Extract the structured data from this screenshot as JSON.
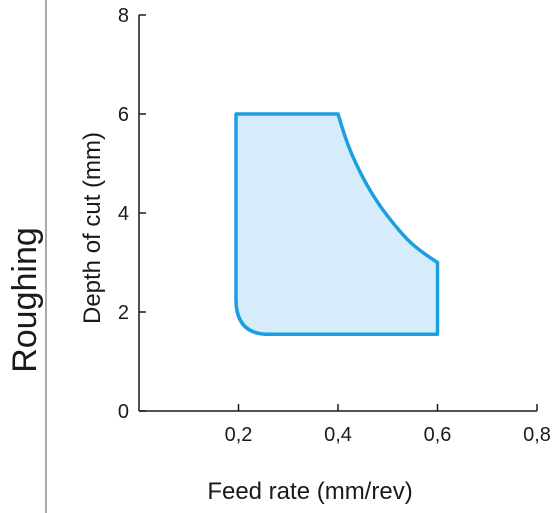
{
  "chart_data": {
    "type": "area",
    "section_label": "Roughing",
    "xlabel": "Feed rate (mm/rev)",
    "ylabel": "Depth of cut (mm)",
    "xlim": [
      0,
      0.8
    ],
    "ylim": [
      0,
      8
    ],
    "x_ticks": [
      0.2,
      0.4,
      0.6,
      0.8
    ],
    "x_tick_labels": [
      "0,2",
      "0,4",
      "0,6",
      "0,8"
    ],
    "y_ticks": [
      0,
      2,
      4,
      6,
      8
    ],
    "y_tick_labels": [
      "0",
      "2",
      "4",
      "6",
      "8"
    ],
    "grid": false,
    "region": {
      "x": [
        0.195,
        0.4,
        0.42,
        0.45,
        0.48,
        0.51,
        0.54,
        0.57,
        0.6,
        0.6,
        0.26,
        0.195
      ],
      "y": [
        6.0,
        6.0,
        5.35,
        4.7,
        4.2,
        3.8,
        3.45,
        3.2,
        3.0,
        1.55,
        1.55,
        2.25
      ]
    },
    "colors": {
      "outline": "#1b9fe0",
      "fill": "#d6ecfa",
      "axis": "#1a1a1a",
      "divider": "#555555"
    }
  }
}
